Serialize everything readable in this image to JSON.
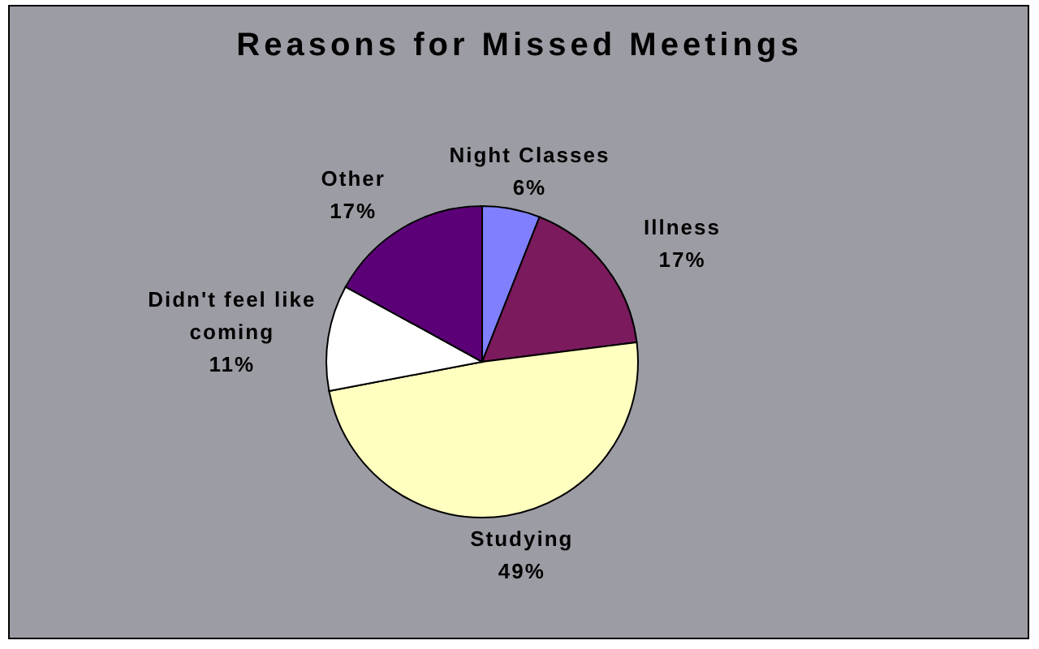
{
  "chart_data": {
    "type": "pie",
    "title": "Reasons for Missed Meetings",
    "categories": [
      "Night Classes",
      "Illness",
      "Studying",
      "Didn't feel like coming",
      "Other"
    ],
    "values": [
      6,
      17,
      49,
      11,
      17
    ],
    "value_labels": [
      "6%",
      "17%",
      "49%",
      "11%",
      "17%"
    ],
    "colors": [
      "#8080ff",
      "#7b1a5c",
      "#ffffc0",
      "#ffffff",
      "#5c0078"
    ]
  }
}
